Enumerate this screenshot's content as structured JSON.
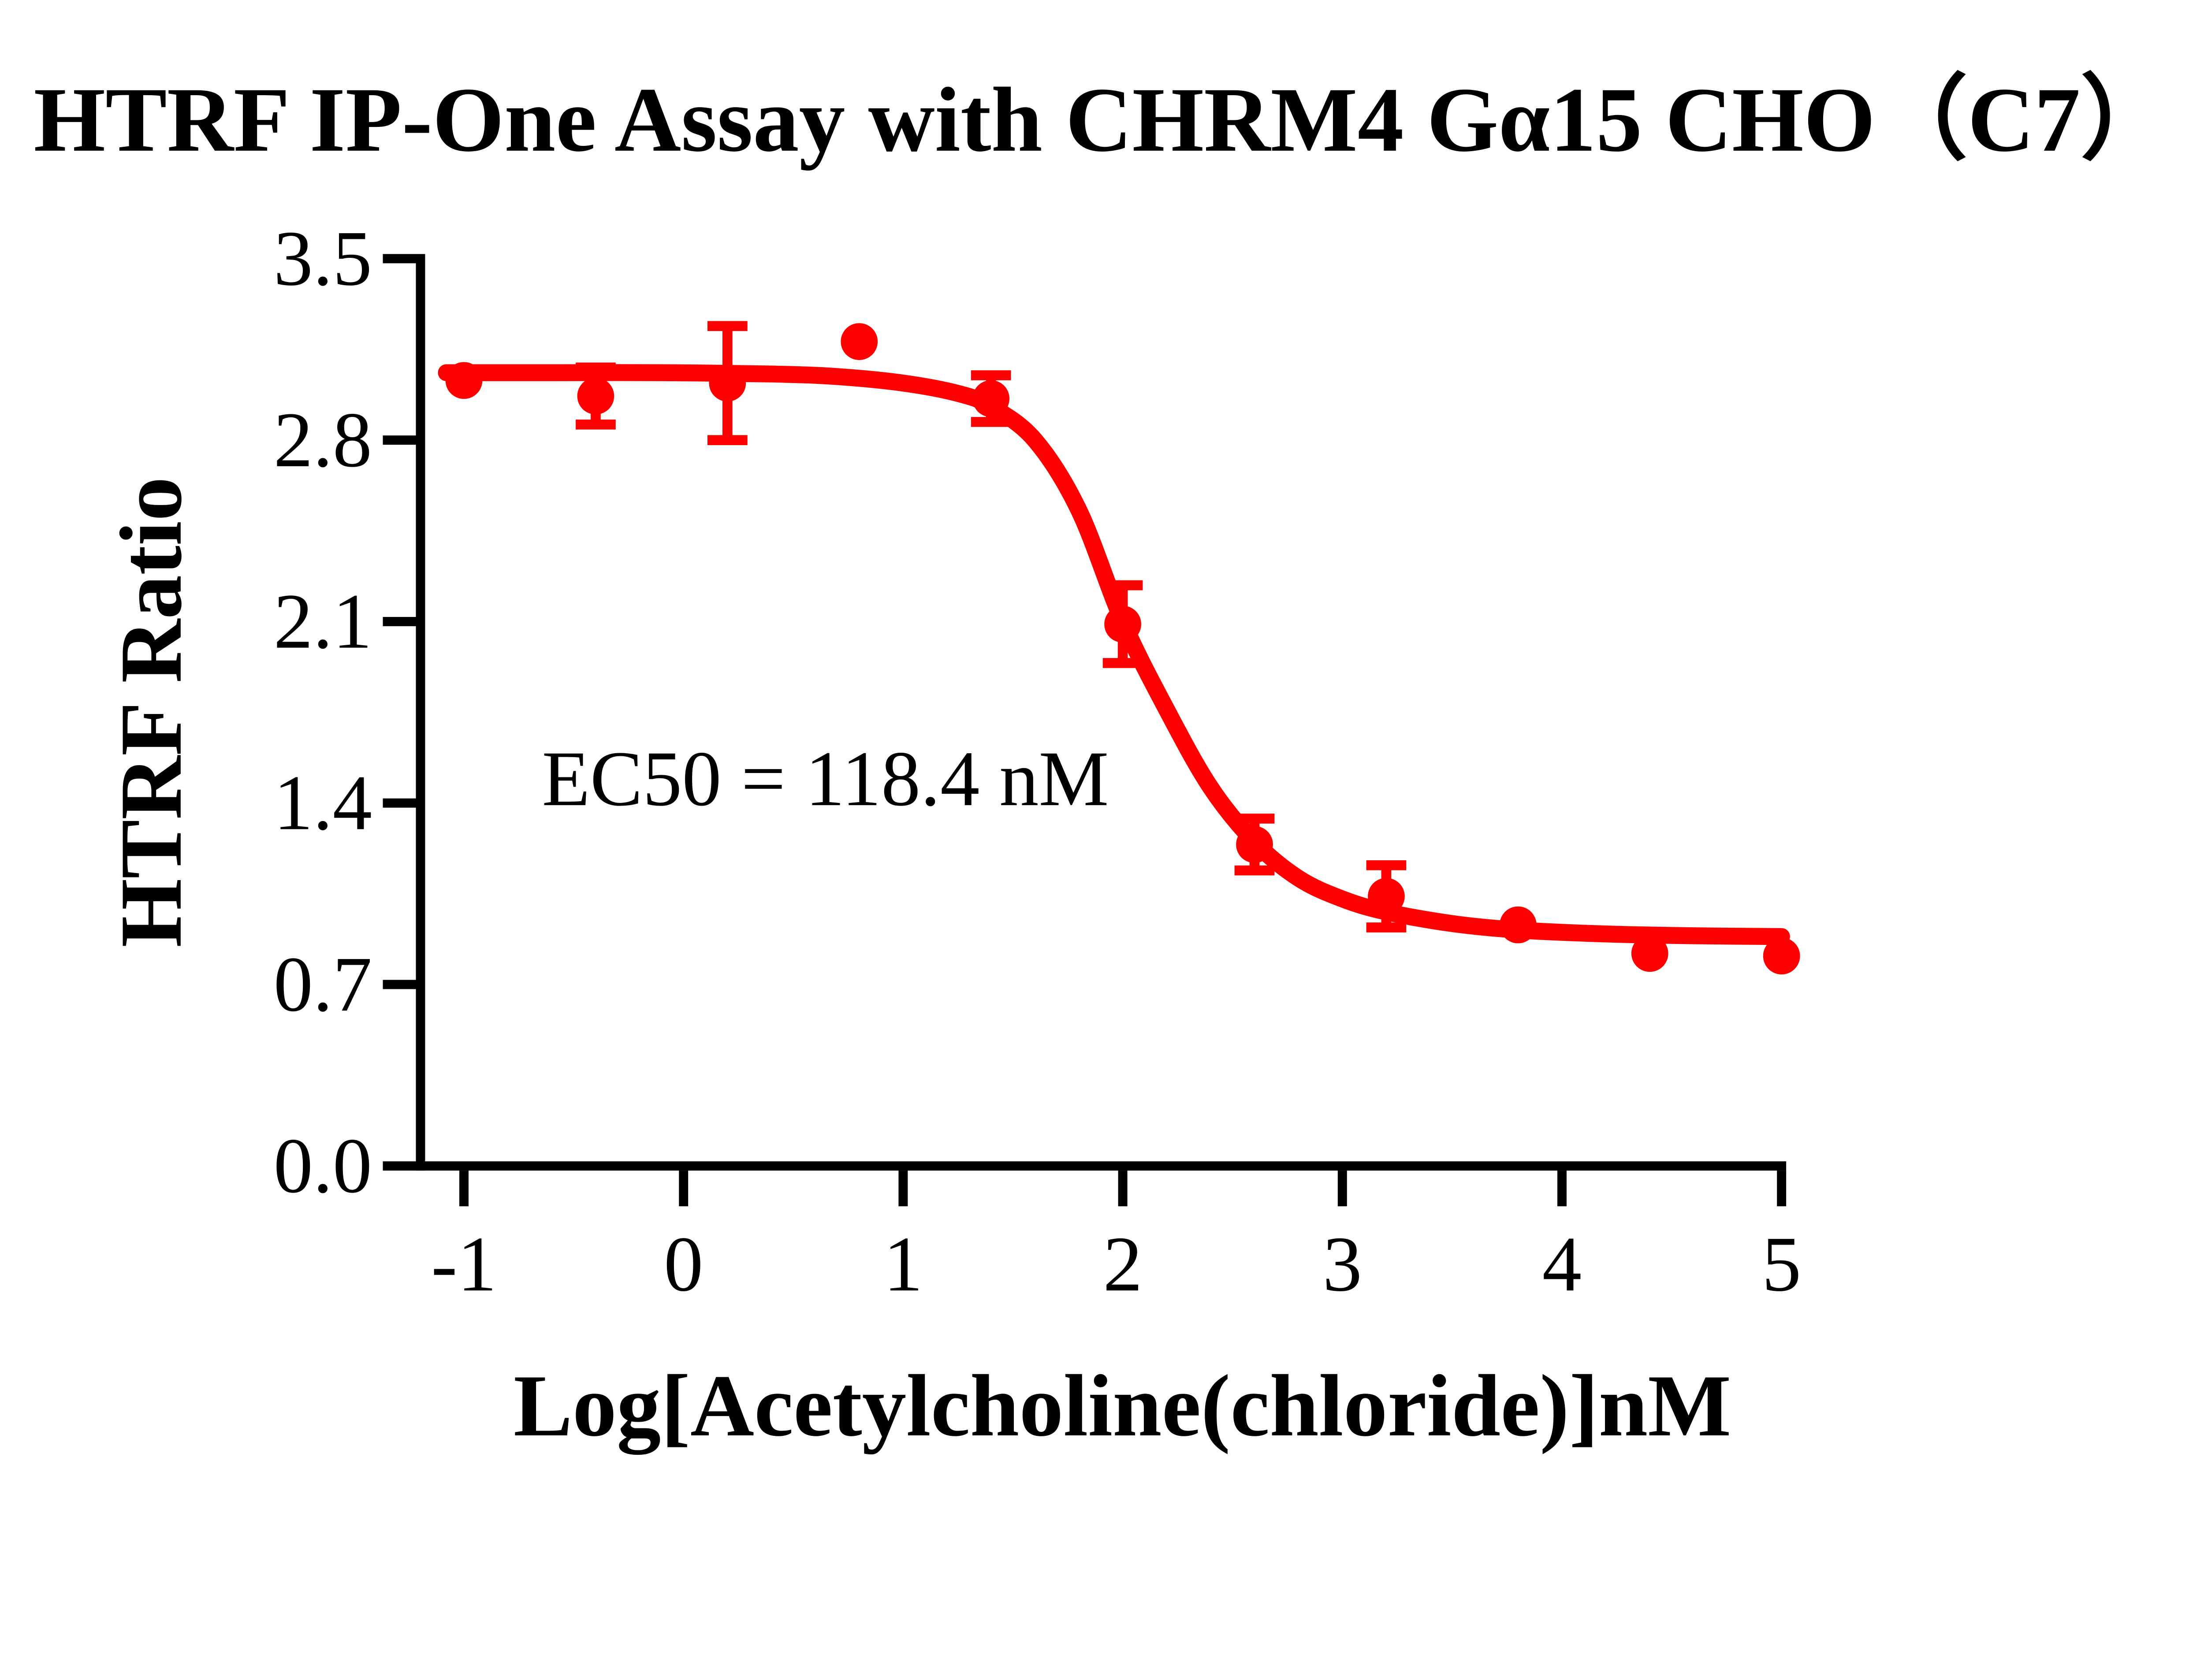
{
  "title": "HTRF IP-One Assay with CHRM4 Gα15 CHO（C7）",
  "colors": {
    "series": "#FF0000",
    "axis": "#000000",
    "text": "#000000",
    "background": "#FFFFFF"
  },
  "chart_data": {
    "type": "scatter",
    "title": "HTRF IP-One Assay with CHRM4 Gα15 CHO（C7）",
    "xlabel": "Log[Acetylcholine(chloride)]nM",
    "ylabel": "HTRF Ratio",
    "annotation": "EC50 = 118.4 nM",
    "ec50_nM": 118.4,
    "xlim": [
      -1.22,
      5.02
    ],
    "ylim": [
      0,
      3.5
    ],
    "grid": false,
    "legend_position": "none",
    "x_tick_labels": [
      "-1",
      "0",
      "1",
      "2",
      "3",
      "4",
      "5"
    ],
    "x_tick_values": [
      -1,
      0,
      1,
      2,
      3,
      4,
      5
    ],
    "y_tick_labels": [
      "0.0",
      "0.7",
      "1.4",
      "2.1",
      "2.8",
      "3.5"
    ],
    "y_tick_values": [
      0,
      0.7,
      1.4,
      2.1,
      2.8,
      3.5
    ],
    "series": [
      {
        "marker": "circle",
        "color": "#FF0000",
        "points": [
          {
            "x": -1.0,
            "y": 3.03
          },
          {
            "x": -0.4,
            "y": 2.97,
            "err": 0.11
          },
          {
            "x": 0.2,
            "y": 3.02,
            "err": 0.22
          },
          {
            "x": 0.8,
            "y": 3.18
          },
          {
            "x": 1.4,
            "y": 2.96,
            "err": 0.09
          },
          {
            "x": 2.0,
            "y": 2.09,
            "err": 0.15
          },
          {
            "x": 2.6,
            "y": 1.24,
            "err": 0.1
          },
          {
            "x": 3.2,
            "y": 1.04,
            "err": 0.12
          },
          {
            "x": 3.8,
            "y": 0.93
          },
          {
            "x": 4.4,
            "y": 0.82
          },
          {
            "x": 5.0,
            "y": 0.81
          }
        ]
      }
    ],
    "fit_curve": [
      [
        -1.08,
        3.06
      ],
      [
        -0.6,
        3.06
      ],
      [
        -0.1,
        3.06
      ],
      [
        0.4,
        3.055
      ],
      [
        0.7,
        3.045
      ],
      [
        1.0,
        3.02
      ],
      [
        1.25,
        2.98
      ],
      [
        1.4,
        2.93
      ],
      [
        1.6,
        2.8
      ],
      [
        1.8,
        2.53
      ],
      [
        2.0,
        2.1
      ],
      [
        2.2,
        1.76
      ],
      [
        2.4,
        1.46
      ],
      [
        2.6,
        1.25
      ],
      [
        2.8,
        1.11
      ],
      [
        3.0,
        1.03
      ],
      [
        3.2,
        0.98
      ],
      [
        3.5,
        0.935
      ],
      [
        3.8,
        0.91
      ],
      [
        4.2,
        0.895
      ],
      [
        4.6,
        0.888
      ],
      [
        5.0,
        0.885
      ]
    ]
  }
}
